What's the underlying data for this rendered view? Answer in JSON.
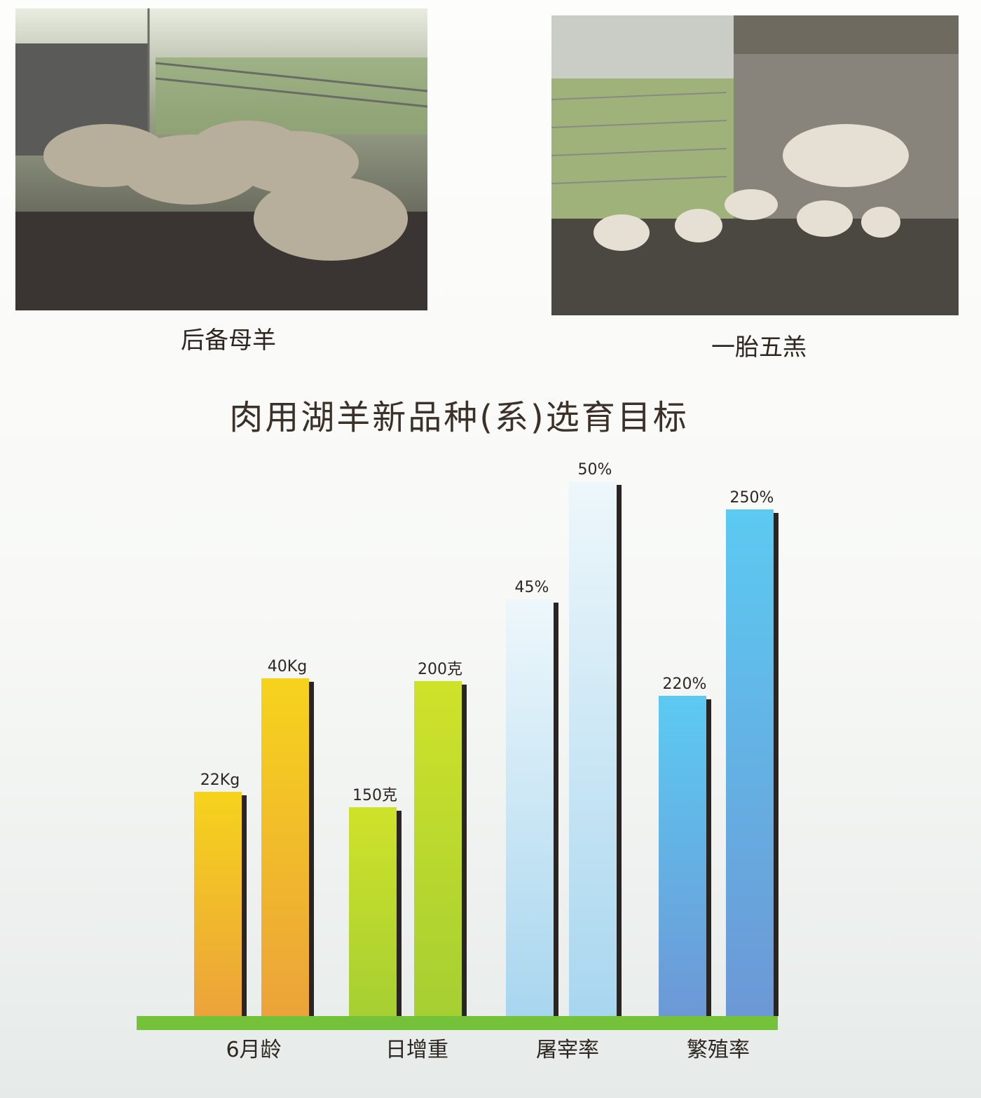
{
  "photos": [
    {
      "caption": "后备母羊"
    },
    {
      "caption": "一胎五羔"
    }
  ],
  "chart_data": {
    "type": "bar",
    "title": "肉用湖羊新品种(系)选育目标",
    "categories": [
      "6月龄",
      "日增重",
      "屠宰率",
      "繁殖率"
    ],
    "series_values": [
      {
        "category": "6月龄",
        "values": [
          22,
          40
        ],
        "unit": "Kg",
        "labels": [
          "22Kg",
          "40Kg"
        ]
      },
      {
        "category": "日增重",
        "values": [
          150,
          200
        ],
        "unit": "克",
        "labels": [
          "150克",
          "200克"
        ]
      },
      {
        "category": "屠宰率",
        "values": [
          45,
          50
        ],
        "unit": "%",
        "labels": [
          "45%",
          "50%"
        ]
      },
      {
        "category": "繁殖率",
        "values": [
          220,
          250
        ],
        "unit": "%",
        "labels": [
          "220%",
          "250%"
        ]
      }
    ],
    "colors": {
      "6月龄": [
        "#f6d31c",
        "#eca33a"
      ],
      "日增重": [
        "#cfe22a",
        "#a6cf32"
      ],
      "屠宰率": [
        "#eef7fb",
        "#a8d6ef"
      ],
      "繁殖率": [
        "#5ccaf2",
        "#6c98d6"
      ],
      "baseline": "#74c23a"
    },
    "grid": false,
    "legend": "none"
  }
}
